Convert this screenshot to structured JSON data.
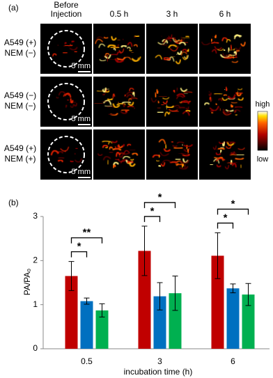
{
  "panel_a": {
    "label": "(a)",
    "columns": [
      [
        "Before",
        "Injection"
      ],
      "0.5 h",
      "3 h",
      "6 h"
    ],
    "rows": [
      [
        "A549 (+)",
        "NEM (−)"
      ],
      [
        "A549 (−)",
        "NEM (−)"
      ],
      [
        "A549 (+)",
        "NEM (+)"
      ]
    ],
    "scale_bar": "5 mm",
    "colorbar": {
      "high": "high",
      "low": "low"
    }
  },
  "chart_data": {
    "type": "bar",
    "label": "(b)",
    "ylabel": "PA/PA₀",
    "xlabel": "incubation time (h)",
    "categories": [
      "0.5",
      "3",
      "6"
    ],
    "series": [
      {
        "color": "#c00000",
        "values": [
          1.65,
          2.22,
          2.11
        ],
        "errors": [
          0.33,
          0.56,
          0.52
        ]
      },
      {
        "color": "#0070c0",
        "values": [
          1.08,
          1.19,
          1.37
        ],
        "errors": [
          0.07,
          0.31,
          0.1
        ]
      },
      {
        "color": "#00b050",
        "values": [
          0.87,
          1.26,
          1.23
        ],
        "errors": [
          0.15,
          0.39,
          0.25
        ]
      }
    ],
    "annotations": [
      "*",
      "**",
      "*",
      "*",
      "*",
      "*"
    ],
    "ylim": [
      0,
      3
    ],
    "yticks": [
      0,
      1,
      2,
      3
    ]
  }
}
